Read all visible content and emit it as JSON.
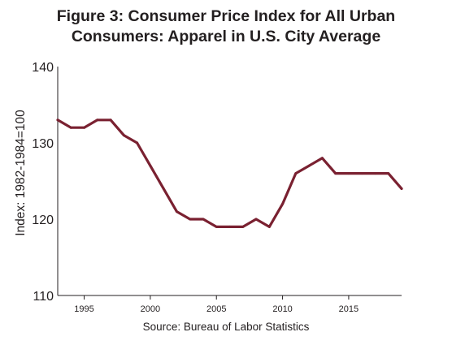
{
  "chart_data": {
    "type": "line",
    "title_lines": [
      "Figure 3: Consumer Price Index for All Urban",
      "Consumers: Apparel in U.S. City Average"
    ],
    "source": "Source: Bureau of Labor Statistics",
    "ylabel": "Index: 1982-1984=100",
    "xlabel": "",
    "ylim": [
      110,
      140
    ],
    "yticks": [
      "110",
      "120",
      "130",
      "140"
    ],
    "xlim": [
      1993,
      2019
    ],
    "xticks": [
      "1995",
      "2000",
      "2005",
      "2010",
      "2015"
    ],
    "grid": false,
    "line_color": "#7a2131",
    "series": [
      {
        "x": [
          1993,
          1994,
          1995,
          1996,
          1997,
          1998,
          1999,
          2000,
          2001,
          2002,
          2003,
          2004,
          2005,
          2006,
          2007,
          2008,
          2009,
          2010,
          2011,
          2012,
          2013,
          2014,
          2015,
          2016,
          2017,
          2018,
          2019
        ],
        "values": [
          133,
          132,
          132,
          133,
          133,
          131,
          130,
          127,
          124,
          121,
          120,
          120,
          119,
          119,
          119,
          120,
          119,
          122,
          126,
          127,
          128,
          126,
          126,
          126,
          126,
          126,
          124
        ]
      }
    ]
  }
}
